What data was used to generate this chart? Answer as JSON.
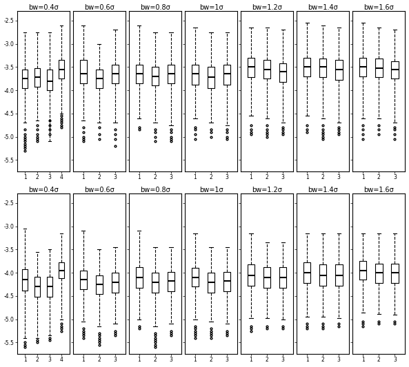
{
  "bw_labels": [
    "bw=0.4σ",
    "bw=0.6σ",
    "bw=0.8σ",
    "bw=1σ",
    "bw=1.2σ",
    "bw=1.4σ",
    "bw=1.6σ"
  ],
  "ylim": [
    -5.75,
    -2.3
  ],
  "yticks": [
    -5.5,
    -5.0,
    -4.5,
    -4.0,
    -3.5,
    -3.0,
    -2.5
  ],
  "n_cols": 7,
  "n_rows": 2,
  "background": "#ffffff",
  "row1": {
    "col0": {
      "n": 4,
      "boxes": [
        {
          "med": -3.75,
          "q1": -3.95,
          "q3": -3.55,
          "whislo": -4.7,
          "whishi": -2.75,
          "fliers": [
            -4.85,
            -4.95,
            -5.0,
            -5.05,
            -5.1,
            -5.15,
            -5.2,
            -5.25,
            -5.3
          ]
        },
        {
          "med": -3.72,
          "q1": -3.92,
          "q3": -3.52,
          "whislo": -4.65,
          "whishi": -2.75,
          "fliers": [
            -4.75,
            -4.85,
            -4.95,
            -5.0,
            -5.05,
            -5.1
          ]
        },
        {
          "med": -3.8,
          "q1": -4.0,
          "q3": -3.55,
          "whislo": -5.1,
          "whishi": -2.75,
          "fliers": [
            -4.65,
            -4.75,
            -4.85,
            -4.95
          ]
        },
        {
          "med": -3.55,
          "q1": -3.75,
          "q3": -3.35,
          "whislo": -4.5,
          "whishi": -2.6,
          "fliers": [
            -4.55,
            -4.6,
            -4.65,
            -4.7,
            -4.75,
            -4.8
          ]
        }
      ]
    },
    "col1": {
      "n": 3,
      "boxes": [
        {
          "med": -3.65,
          "q1": -3.85,
          "q3": -3.35,
          "whislo": -4.65,
          "whishi": -2.6,
          "fliers": [
            -4.8,
            -4.9,
            -5.0,
            -5.05,
            -5.1
          ]
        },
        {
          "med": -3.75,
          "q1": -3.95,
          "q3": -3.55,
          "whislo": -4.7,
          "whishi": -3.0,
          "fliers": [
            -4.8,
            -4.95,
            -5.05
          ]
        },
        {
          "med": -3.65,
          "q1": -3.85,
          "q3": -3.45,
          "whislo": -4.7,
          "whishi": -2.7,
          "fliers": [
            -4.85,
            -4.95,
            -5.05,
            -5.2
          ]
        }
      ]
    },
    "col2": {
      "n": 3,
      "boxes": [
        {
          "med": -3.65,
          "q1": -3.85,
          "q3": -3.45,
          "whislo": -4.6,
          "whishi": -2.6,
          "fliers": [
            -4.8,
            -4.85
          ]
        },
        {
          "med": -3.7,
          "q1": -3.9,
          "q3": -3.5,
          "whislo": -4.7,
          "whishi": -2.75,
          "fliers": [
            -4.85,
            -4.9,
            -5.0,
            -5.1
          ]
        },
        {
          "med": -3.65,
          "q1": -3.85,
          "q3": -3.45,
          "whislo": -4.75,
          "whishi": -2.75,
          "fliers": [
            -4.85,
            -4.9,
            -5.0,
            -5.05,
            -5.1
          ]
        }
      ]
    },
    "col3": {
      "n": 3,
      "boxes": [
        {
          "med": -3.65,
          "q1": -3.88,
          "q3": -3.45,
          "whislo": -4.6,
          "whishi": -2.65,
          "fliers": [
            -4.8,
            -4.85,
            -4.95,
            -5.05
          ]
        },
        {
          "med": -3.72,
          "q1": -3.95,
          "q3": -3.5,
          "whislo": -4.7,
          "whishi": -2.75,
          "fliers": [
            -4.85,
            -4.9,
            -5.0
          ]
        },
        {
          "med": -3.65,
          "q1": -3.88,
          "q3": -3.45,
          "whislo": -4.75,
          "whishi": -2.75,
          "fliers": [
            -4.85,
            -4.9,
            -5.0,
            -5.05
          ]
        }
      ]
    },
    "col4": {
      "n": 3,
      "boxes": [
        {
          "med": -3.5,
          "q1": -3.72,
          "q3": -3.3,
          "whislo": -4.55,
          "whishi": -2.65,
          "fliers": [
            -4.75,
            -4.85,
            -4.9,
            -4.95
          ]
        },
        {
          "med": -3.55,
          "q1": -3.75,
          "q3": -3.35,
          "whislo": -4.6,
          "whishi": -2.65,
          "fliers": [
            -4.75,
            -4.85,
            -4.9,
            -4.95,
            -5.0
          ]
        },
        {
          "med": -3.6,
          "q1": -3.82,
          "q3": -3.42,
          "whislo": -4.7,
          "whishi": -2.7,
          "fliers": [
            -4.8,
            -4.85,
            -4.9,
            -4.95
          ]
        }
      ]
    },
    "col5": {
      "n": 3,
      "boxes": [
        {
          "med": -3.5,
          "q1": -3.7,
          "q3": -3.3,
          "whislo": -4.55,
          "whishi": -2.55,
          "fliers": [
            -4.75,
            -4.85,
            -4.9
          ]
        },
        {
          "med": -3.5,
          "q1": -3.72,
          "q3": -3.32,
          "whislo": -4.6,
          "whishi": -2.6,
          "fliers": [
            -4.75,
            -4.85,
            -4.9,
            -4.95,
            -5.0,
            -5.05
          ]
        },
        {
          "med": -3.55,
          "q1": -3.78,
          "q3": -3.35,
          "whislo": -4.7,
          "whishi": -2.65,
          "fliers": [
            -4.8,
            -4.85,
            -4.9,
            -4.95
          ]
        }
      ]
    },
    "col6": {
      "n": 3,
      "boxes": [
        {
          "med": -3.5,
          "q1": -3.7,
          "q3": -3.3,
          "whislo": -4.6,
          "whishi": -2.55,
          "fliers": [
            -4.75,
            -4.85,
            -4.95,
            -5.05
          ]
        },
        {
          "med": -3.52,
          "q1": -3.72,
          "q3": -3.32,
          "whislo": -4.6,
          "whishi": -2.65,
          "fliers": [
            -4.75,
            -4.85,
            -4.95
          ]
        },
        {
          "med": -3.55,
          "q1": -3.75,
          "q3": -3.38,
          "whislo": -4.7,
          "whishi": -2.7,
          "fliers": [
            -4.8,
            -4.85,
            -4.95,
            -5.05
          ]
        }
      ]
    }
  },
  "row2": {
    "col0": {
      "n": 4,
      "boxes": [
        {
          "med": -4.15,
          "q1": -4.38,
          "q3": -3.92,
          "whislo": -5.4,
          "whishi": -3.05,
          "fliers": [
            -5.5,
            -5.55,
            -5.6
          ]
        },
        {
          "med": -4.3,
          "q1": -4.52,
          "q3": -4.08,
          "whislo": -5.4,
          "whishi": -3.55,
          "fliers": [
            -5.45,
            -5.5
          ]
        },
        {
          "med": -4.3,
          "q1": -4.52,
          "q3": -4.08,
          "whislo": -5.35,
          "whishi": -3.5,
          "fliers": [
            -5.4,
            -5.45
          ]
        },
        {
          "med": -3.95,
          "q1": -4.12,
          "q3": -3.78,
          "whislo": -5.0,
          "whishi": -3.15,
          "fliers": [
            -5.1,
            -5.15,
            -5.2,
            -5.25
          ]
        }
      ]
    },
    "col1": {
      "n": 3,
      "boxes": [
        {
          "med": -4.15,
          "q1": -4.35,
          "q3": -3.95,
          "whislo": -5.05,
          "whishi": -3.1,
          "fliers": [
            -5.2,
            -5.25,
            -5.3,
            -5.35,
            -5.4
          ]
        },
        {
          "med": -4.25,
          "q1": -4.45,
          "q3": -4.05,
          "whislo": -5.15,
          "whishi": -3.5,
          "fliers": [
            -5.3,
            -5.35,
            -5.4,
            -5.45,
            -5.5,
            -5.55
          ]
        },
        {
          "med": -4.2,
          "q1": -4.42,
          "q3": -4.0,
          "whislo": -5.1,
          "whishi": -3.45,
          "fliers": [
            -5.25,
            -5.3,
            -5.35
          ]
        }
      ]
    },
    "col2": {
      "n": 3,
      "boxes": [
        {
          "med": -4.1,
          "q1": -4.32,
          "q3": -3.88,
          "whislo": -5.0,
          "whishi": -3.1,
          "fliers": [
            -5.15,
            -5.2
          ]
        },
        {
          "med": -4.2,
          "q1": -4.42,
          "q3": -4.0,
          "whislo": -5.15,
          "whishi": -3.45,
          "fliers": [
            -5.3,
            -5.35,
            -5.4,
            -5.45,
            -5.5,
            -5.55,
            -5.6
          ]
        },
        {
          "med": -4.18,
          "q1": -4.4,
          "q3": -3.98,
          "whislo": -5.1,
          "whishi": -3.45,
          "fliers": [
            -5.25,
            -5.3,
            -5.35
          ]
        }
      ]
    },
    "col3": {
      "n": 3,
      "boxes": [
        {
          "med": -4.1,
          "q1": -4.3,
          "q3": -3.9,
          "whislo": -5.0,
          "whishi": -3.15,
          "fliers": [
            -5.15,
            -5.2,
            -5.25,
            -5.3,
            -5.35,
            -5.4
          ]
        },
        {
          "med": -4.2,
          "q1": -4.42,
          "q3": -4.0,
          "whislo": -5.05,
          "whishi": -3.45,
          "fliers": [
            -5.2,
            -5.25,
            -5.3,
            -5.35,
            -5.4
          ]
        },
        {
          "med": -4.18,
          "q1": -4.4,
          "q3": -3.98,
          "whislo": -5.1,
          "whishi": -3.45,
          "fliers": [
            -5.25,
            -5.3,
            -5.35
          ]
        }
      ]
    },
    "col4": {
      "n": 3,
      "boxes": [
        {
          "med": -4.05,
          "q1": -4.28,
          "q3": -3.82,
          "whislo": -4.98,
          "whishi": -3.15,
          "fliers": [
            -5.15,
            -5.2,
            -5.25
          ]
        },
        {
          "med": -4.1,
          "q1": -4.32,
          "q3": -3.88,
          "whislo": -4.98,
          "whishi": -3.35,
          "fliers": [
            -5.15,
            -5.2
          ]
        },
        {
          "med": -4.1,
          "q1": -4.32,
          "q3": -3.88,
          "whislo": -5.0,
          "whishi": -3.35,
          "fliers": [
            -5.15,
            -5.2
          ]
        }
      ]
    },
    "col5": {
      "n": 3,
      "boxes": [
        {
          "med": -4.0,
          "q1": -4.22,
          "q3": -3.78,
          "whislo": -4.95,
          "whishi": -3.15,
          "fliers": [
            -5.1,
            -5.15,
            -5.2
          ]
        },
        {
          "med": -4.05,
          "q1": -4.28,
          "q3": -3.82,
          "whislo": -4.95,
          "whishi": -3.15,
          "fliers": [
            -5.1,
            -5.15,
            -5.2
          ]
        },
        {
          "med": -4.05,
          "q1": -4.28,
          "q3": -3.82,
          "whislo": -4.98,
          "whishi": -3.15,
          "fliers": [
            -5.1,
            -5.15
          ]
        }
      ]
    },
    "col6": {
      "n": 3,
      "boxes": [
        {
          "med": -3.95,
          "q1": -4.15,
          "q3": -3.75,
          "whislo": -4.85,
          "whishi": -3.15,
          "fliers": [
            -5.05,
            -5.1,
            -5.15
          ]
        },
        {
          "med": -4.0,
          "q1": -4.22,
          "q3": -3.8,
          "whislo": -4.88,
          "whishi": -3.15,
          "fliers": [
            -5.05,
            -5.1
          ]
        },
        {
          "med": -4.0,
          "q1": -4.22,
          "q3": -3.8,
          "whislo": -4.9,
          "whishi": -3.15,
          "fliers": [
            -5.05,
            -5.1
          ]
        }
      ]
    }
  }
}
